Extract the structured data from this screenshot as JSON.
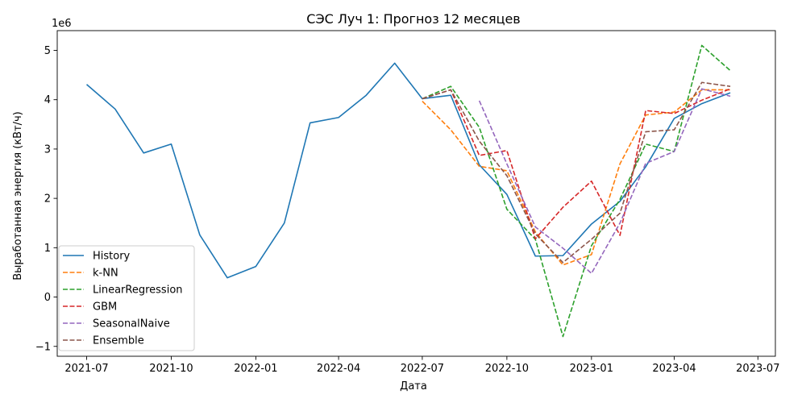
{
  "chart_data": {
    "type": "line",
    "title": "СЭС Луч 1: Прогноз 12 месяцев",
    "xlabel": "Дата",
    "ylabel": "Выработанная энергия (кВт/ч)",
    "y_scale_label": "1e6",
    "y_scale": 1000000,
    "xlim": [
      "2021-05-30",
      "2023-07-20"
    ],
    "ylim": [
      -1.2,
      5.4
    ],
    "x_ticks": [
      {
        "date": "2021-07-01",
        "label": "2021-07"
      },
      {
        "date": "2021-10-01",
        "label": "2021-10"
      },
      {
        "date": "2022-01-01",
        "label": "2022-01"
      },
      {
        "date": "2022-04-01",
        "label": "2022-04"
      },
      {
        "date": "2022-07-01",
        "label": "2022-07"
      },
      {
        "date": "2022-10-01",
        "label": "2022-10"
      },
      {
        "date": "2023-01-01",
        "label": "2023-01"
      },
      {
        "date": "2023-04-01",
        "label": "2023-04"
      },
      {
        "date": "2023-07-01",
        "label": "2023-07"
      }
    ],
    "y_ticks": [
      {
        "value": -1,
        "label": "−1"
      },
      {
        "value": 0,
        "label": "0"
      },
      {
        "value": 1,
        "label": "1"
      },
      {
        "value": 2,
        "label": "2"
      },
      {
        "value": 3,
        "label": "3"
      },
      {
        "value": 4,
        "label": "4"
      },
      {
        "value": 5,
        "label": "5"
      }
    ],
    "grid": false,
    "legend_position": "lower-left",
    "series": [
      {
        "name": "History",
        "color": "#1f77b4",
        "dash": "solid",
        "x": [
          "2021-07-01",
          "2021-08-01",
          "2021-09-01",
          "2021-10-01",
          "2021-11-01",
          "2021-12-01",
          "2022-01-01",
          "2022-02-01",
          "2022-03-01",
          "2022-04-01",
          "2022-05-01",
          "2022-06-01",
          "2022-07-01",
          "2022-08-01",
          "2022-09-01",
          "2022-10-01",
          "2022-11-01",
          "2022-12-01",
          "2023-01-01",
          "2023-02-01",
          "2023-03-01",
          "2023-04-01",
          "2023-05-01",
          "2023-06-01"
        ],
        "y": [
          4.31,
          3.81,
          2.92,
          3.1,
          1.26,
          0.39,
          0.62,
          1.5,
          3.53,
          3.64,
          4.09,
          4.74,
          4.02,
          4.09,
          2.68,
          2.08,
          0.83,
          0.84,
          1.48,
          1.94,
          2.64,
          3.62,
          3.92,
          4.14
        ]
      },
      {
        "name": "k-NN",
        "color": "#ff7f0e",
        "dash": "dashed",
        "x": [
          "2022-07-01",
          "2022-08-01",
          "2022-09-01",
          "2022-10-01",
          "2022-11-01",
          "2022-12-01",
          "2023-01-01",
          "2023-02-01",
          "2023-03-01",
          "2023-04-01",
          "2023-05-01",
          "2023-06-01"
        ],
        "y": [
          3.97,
          3.39,
          2.65,
          2.56,
          1.32,
          0.65,
          0.86,
          2.7,
          3.69,
          3.75,
          4.2,
          4.2
        ]
      },
      {
        "name": "LinearRegression",
        "color": "#2ca02c",
        "dash": "dashed",
        "x": [
          "2022-07-01",
          "2022-08-01",
          "2022-09-01",
          "2022-10-01",
          "2022-11-01",
          "2022-12-01",
          "2023-01-01",
          "2023-02-01",
          "2023-03-01",
          "2023-04-01",
          "2023-05-01",
          "2023-06-01"
        ],
        "y": [
          4.02,
          4.27,
          3.44,
          1.78,
          1.17,
          -0.8,
          1.04,
          1.98,
          3.1,
          2.95,
          5.1,
          4.59
        ]
      },
      {
        "name": "GBM",
        "color": "#d62728",
        "dash": "dashed",
        "x": [
          "2022-07-01",
          "2022-08-01",
          "2022-09-01",
          "2022-10-01",
          "2022-11-01",
          "2022-12-01",
          "2023-01-01",
          "2023-02-01",
          "2023-03-01",
          "2023-04-01",
          "2023-05-01",
          "2023-06-01"
        ],
        "y": [
          4.02,
          4.2,
          2.87,
          2.97,
          1.18,
          1.82,
          2.35,
          1.25,
          3.78,
          3.72,
          3.99,
          4.22
        ]
      },
      {
        "name": "SeasonalNaive",
        "color": "#9467bd",
        "dash": "dashed",
        "x": [
          "2022-09-01",
          "2022-10-01",
          "2022-11-01",
          "2022-12-01",
          "2023-01-01",
          "2023-02-01",
          "2023-03-01",
          "2023-04-01",
          "2023-05-01",
          "2023-06-01"
        ],
        "y": [
          3.98,
          2.7,
          1.42,
          0.99,
          0.48,
          1.5,
          2.71,
          2.95,
          4.22,
          4.07
        ]
      },
      {
        "name": "Ensemble",
        "color": "#8c564b",
        "dash": "dashed",
        "x": [
          "2022-07-01",
          "2022-08-01",
          "2022-09-01",
          "2022-10-01",
          "2022-11-01",
          "2022-12-01",
          "2023-01-01",
          "2023-02-01",
          "2023-03-01",
          "2023-04-01",
          "2023-05-01",
          "2023-06-01"
        ],
        "y": [
          4.02,
          4.2,
          3.16,
          2.46,
          1.28,
          0.7,
          1.17,
          1.7,
          3.35,
          3.39,
          4.35,
          4.27
        ]
      }
    ]
  }
}
